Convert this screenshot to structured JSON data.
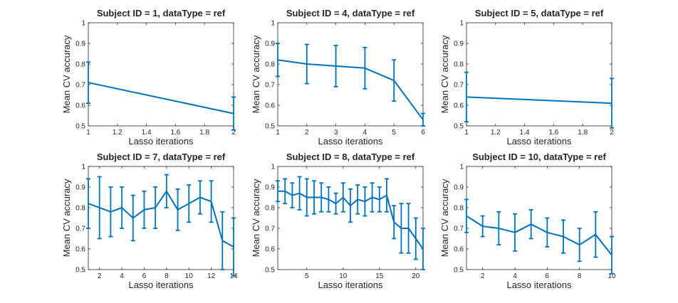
{
  "colors": {
    "series": "#0072bd",
    "axis": "#262626",
    "background": "#ffffff"
  },
  "chart_data": [
    {
      "type": "line",
      "title": "Subject ID = 1, dataType = ref",
      "xlabel": "Lasso iterations",
      "ylabel": "Mean CV accuracy",
      "xlim": [
        1,
        2
      ],
      "ylim": [
        0.5,
        1
      ],
      "xticks": [
        1,
        1.2,
        1.4,
        1.6,
        1.8,
        2
      ],
      "xtick_labels": [
        "1",
        "1.2",
        "1.4",
        "1.6",
        "1.8",
        "2"
      ],
      "yticks": [
        0.5,
        0.6,
        0.7,
        0.8,
        0.9,
        1
      ],
      "ytick_labels": [
        "0.5",
        "0.6",
        "0.7",
        "0.8",
        "0.9",
        "1"
      ],
      "grid": false,
      "x": [
        1,
        2
      ],
      "y": [
        0.71,
        0.56
      ],
      "error": [
        0.1,
        0.08
      ]
    },
    {
      "type": "line",
      "title": "Subject ID = 4, dataType = ref",
      "xlabel": "Lasso iterations",
      "ylabel": "Mean CV accuracy",
      "xlim": [
        1,
        6
      ],
      "ylim": [
        0.5,
        1
      ],
      "xticks": [
        1,
        2,
        3,
        4,
        5,
        6
      ],
      "xtick_labels": [
        "1",
        "2",
        "3",
        "4",
        "5",
        "6"
      ],
      "yticks": [
        0.5,
        0.6,
        0.7,
        0.8,
        0.9,
        1
      ],
      "ytick_labels": [
        "0.5",
        "0.6",
        "0.7",
        "0.8",
        "0.9",
        "1"
      ],
      "grid": false,
      "x": [
        1,
        2,
        3,
        4,
        5,
        6
      ],
      "y": [
        0.82,
        0.8,
        0.79,
        0.78,
        0.72,
        0.53
      ],
      "error": [
        0.08,
        0.095,
        0.1,
        0.1,
        0.1,
        0.03
      ]
    },
    {
      "type": "line",
      "title": "Subject ID = 5, dataType = ref",
      "xlabel": "Lasso iterations",
      "ylabel": "Mean CV accuracy",
      "xlim": [
        1,
        2
      ],
      "ylim": [
        0.5,
        1
      ],
      "xticks": [
        1,
        1.2,
        1.4,
        1.6,
        1.8,
        2
      ],
      "xtick_labels": [
        "1",
        "1.2",
        "1.4",
        "1.6",
        "1.8",
        "2"
      ],
      "yticks": [
        0.5,
        0.6,
        0.7,
        0.8,
        0.9,
        1
      ],
      "ytick_labels": [
        "0.5",
        "0.6",
        "0.7",
        "0.8",
        "0.9",
        "1"
      ],
      "grid": false,
      "x": [
        1,
        2
      ],
      "y": [
        0.64,
        0.61
      ],
      "error": [
        0.12,
        0.12
      ]
    },
    {
      "type": "line",
      "title": "Subject ID = 7, dataType = ref",
      "xlabel": "Lasso iterations",
      "ylabel": "Mean CV accuracy",
      "xlim": [
        1,
        14
      ],
      "ylim": [
        0.5,
        1
      ],
      "xticks": [
        2,
        4,
        6,
        8,
        10,
        12,
        14
      ],
      "xtick_labels": [
        "2",
        "4",
        "6",
        "8",
        "10",
        "12",
        "14"
      ],
      "yticks": [
        0.5,
        0.6,
        0.7,
        0.8,
        0.9,
        1
      ],
      "ytick_labels": [
        "0.5",
        "0.6",
        "0.7",
        "0.8",
        "0.9",
        "1"
      ],
      "grid": false,
      "x": [
        1,
        2,
        3,
        4,
        5,
        6,
        7,
        8,
        9,
        10,
        11,
        12,
        13,
        14
      ],
      "y": [
        0.82,
        0.8,
        0.78,
        0.8,
        0.75,
        0.79,
        0.8,
        0.88,
        0.79,
        0.82,
        0.85,
        0.83,
        0.64,
        0.61
      ],
      "error": [
        0.12,
        0.15,
        0.12,
        0.1,
        0.11,
        0.09,
        0.1,
        0.08,
        0.1,
        0.09,
        0.08,
        0.1,
        0.14,
        0.14
      ]
    },
    {
      "type": "line",
      "title": "Subject ID = 8, dataType = ref",
      "xlabel": "Lasso iterations",
      "ylabel": "Mean CV accuracy",
      "xlim": [
        1,
        21
      ],
      "ylim": [
        0.5,
        1
      ],
      "xticks": [
        5,
        10,
        15,
        20
      ],
      "xtick_labels": [
        "5",
        "10",
        "15",
        "20"
      ],
      "yticks": [
        0.5,
        0.6,
        0.7,
        0.8,
        0.9,
        1
      ],
      "ytick_labels": [
        "0.5",
        "0.6",
        "0.7",
        "0.8",
        "0.9",
        "1"
      ],
      "grid": false,
      "x": [
        1,
        2,
        3,
        4,
        5,
        6,
        7,
        8,
        9,
        10,
        11,
        12,
        13,
        14,
        15,
        16,
        17,
        18,
        19,
        20,
        21
      ],
      "y": [
        0.88,
        0.88,
        0.86,
        0.87,
        0.85,
        0.85,
        0.85,
        0.84,
        0.82,
        0.85,
        0.81,
        0.84,
        0.83,
        0.85,
        0.84,
        0.86,
        0.73,
        0.7,
        0.7,
        0.65,
        0.6
      ],
      "error": [
        0.05,
        0.06,
        0.06,
        0.08,
        0.09,
        0.08,
        0.07,
        0.06,
        0.05,
        0.07,
        0.08,
        0.07,
        0.07,
        0.07,
        0.06,
        0.08,
        0.08,
        0.12,
        0.12,
        0.1,
        0.1
      ]
    },
    {
      "type": "line",
      "title": "Subject ID = 10, dataType = ref",
      "xlabel": "Lasso iterations",
      "ylabel": "Mean CV accuracy",
      "xlim": [
        1,
        10
      ],
      "ylim": [
        0.5,
        1
      ],
      "xticks": [
        2,
        4,
        6,
        8,
        10
      ],
      "xtick_labels": [
        "2",
        "4",
        "6",
        "8",
        "10"
      ],
      "yticks": [
        0.5,
        0.6,
        0.7,
        0.8,
        0.9,
        1
      ],
      "ytick_labels": [
        "0.5",
        "0.6",
        "0.7",
        "0.8",
        "0.9",
        "1"
      ],
      "grid": false,
      "x": [
        1,
        2,
        3,
        4,
        5,
        6,
        7,
        8,
        9,
        10
      ],
      "y": [
        0.76,
        0.71,
        0.7,
        0.68,
        0.72,
        0.68,
        0.66,
        0.62,
        0.67,
        0.57
      ],
      "error": [
        0.08,
        0.05,
        0.08,
        0.09,
        0.07,
        0.07,
        0.08,
        0.08,
        0.11,
        0.09
      ]
    }
  ]
}
